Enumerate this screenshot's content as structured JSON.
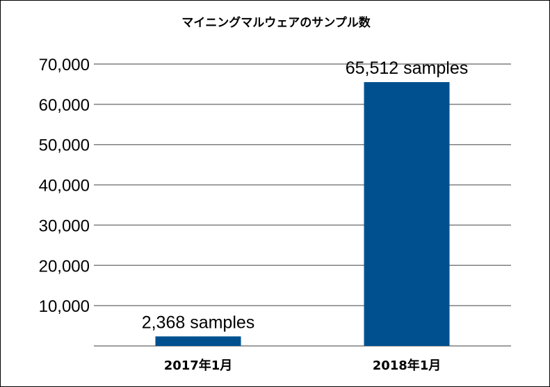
{
  "chart_data": {
    "type": "bar",
    "title": "マイニングマルウェアのサンプル数",
    "xlabel": "",
    "ylabel": "",
    "categories": [
      "2017年1月",
      "2018年1月"
    ],
    "values": [
      2368,
      65512
    ],
    "data_labels": [
      "2,368 samples",
      "65,512 samples"
    ],
    "ylim": [
      0,
      70000
    ],
    "yticks": [
      10000,
      20000,
      30000,
      40000,
      50000,
      60000,
      70000
    ],
    "ytick_labels": [
      "10,000",
      "20,000",
      "30,000",
      "40,000",
      "50,000",
      "60,000",
      "70,000"
    ],
    "grid": true,
    "legend": "none",
    "bar_color": "#00508f",
    "grid_color": "#7f7f7f"
  }
}
